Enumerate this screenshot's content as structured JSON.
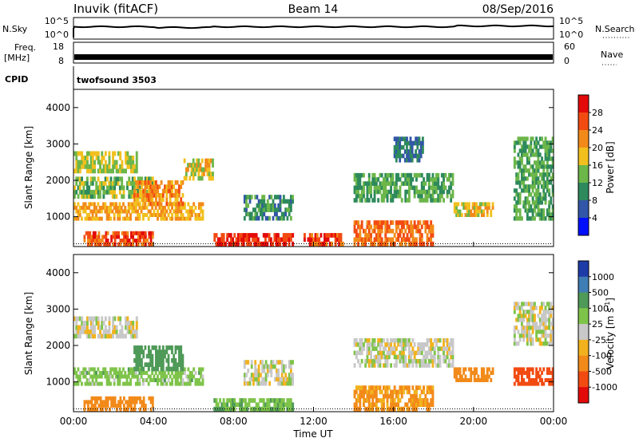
{
  "header": {
    "station": "Inuvik (fitACF)",
    "beam": "Beam 14",
    "date": "08/Sep/2016"
  },
  "top_panels": {
    "nsky_label": "N.Sky",
    "nsky_ticks": [
      "10^5",
      "10^0"
    ],
    "nsearch_label": "N.Search",
    "nsearch_ticks": [
      "10^5",
      "10^0"
    ],
    "freq_label": "Freq.",
    "freq_unit": "[MHz]",
    "freq_ticks": [
      "18",
      "8"
    ],
    "nave_label": "Nave",
    "nave_ticks": [
      "60",
      "0"
    ],
    "cpid_label": "CPID",
    "cpid_value": "twofsound 3503"
  },
  "axes": {
    "xlabel": "Time UT",
    "x_ticks": [
      "00:00",
      "04:00",
      "08:00",
      "12:00",
      "16:00",
      "20:00",
      "00:00"
    ],
    "ylabel": "Slant Range [km]",
    "y_ticks": [
      "1000",
      "2000",
      "3000",
      "4000"
    ],
    "ylim": [
      180,
      4500
    ]
  },
  "colorbars": {
    "power": {
      "label": "Power [dB]",
      "ticks": [
        "28",
        "24",
        "20",
        "16",
        "12",
        "8",
        "4"
      ],
      "colors": [
        "#0010ff",
        "#3256a8",
        "#2e8a5c",
        "#6cb64a",
        "#f2c01e",
        "#f28a1a",
        "#f24b12",
        "#e30a0a"
      ]
    },
    "velocity": {
      "label": "Velocity [m s",
      "label_sup": "-1",
      "label_end": "]",
      "ticks": [
        "1000",
        "500",
        "100",
        "25",
        "-25",
        "-100",
        "-500",
        "-1000"
      ],
      "colors": [
        "#1e3ca8",
        "#3f7db5",
        "#4f9a58",
        "#7fc44a",
        "#c8c8c8",
        "#f2b21e",
        "#f28a1a",
        "#f24b12",
        "#e30a0a"
      ]
    }
  },
  "chart_data": [
    {
      "type": "heatmap",
      "title": "Power",
      "xlabel": "Time UT",
      "ylabel": "Slant Range [km]",
      "xlim": [
        "00:00",
        "24:00"
      ],
      "ylim": [
        180,
        4500
      ],
      "colorbar": "Power [dB]",
      "regions": [
        {
          "t0": 0.0,
          "t1": 3.2,
          "r0": 2200,
          "r1": 2800,
          "v": 16
        },
        {
          "t0": 0.0,
          "t1": 6.5,
          "r0": 900,
          "r1": 1400,
          "v": 20
        },
        {
          "t0": 0.0,
          "t1": 4.0,
          "r0": 1500,
          "r1": 2100,
          "v": 14
        },
        {
          "t0": 0.5,
          "t1": 4.0,
          "r0": 200,
          "r1": 600,
          "v": 26
        },
        {
          "t0": 3.0,
          "t1": 5.5,
          "r0": 1300,
          "r1": 2000,
          "v": 22
        },
        {
          "t0": 5.5,
          "t1": 7.0,
          "r0": 2000,
          "r1": 2600,
          "v": 18
        },
        {
          "t0": 7.0,
          "t1": 11.0,
          "r0": 200,
          "r1": 550,
          "v": 28
        },
        {
          "t0": 8.5,
          "t1": 11.0,
          "r0": 900,
          "r1": 1600,
          "v": 10
        },
        {
          "t0": 11.5,
          "t1": 13.5,
          "r0": 200,
          "r1": 550,
          "v": 26
        },
        {
          "t0": 14.0,
          "t1": 18.0,
          "r0": 200,
          "r1": 900,
          "v": 24
        },
        {
          "t0": 14.0,
          "t1": 19.0,
          "r0": 1400,
          "r1": 2200,
          "v": 12
        },
        {
          "t0": 16.0,
          "t1": 17.5,
          "r0": 2500,
          "r1": 3200,
          "v": 8
        },
        {
          "t0": 19.0,
          "t1": 21.0,
          "r0": 1000,
          "r1": 1400,
          "v": 18
        },
        {
          "t0": 22.0,
          "t1": 24.0,
          "r0": 900,
          "r1": 3200,
          "v": 12
        }
      ]
    },
    {
      "type": "heatmap",
      "title": "Velocity",
      "xlabel": "Time UT",
      "ylabel": "Slant Range [km]",
      "xlim": [
        "00:00",
        "24:00"
      ],
      "ylim": [
        180,
        4500
      ],
      "colorbar": "Velocity [m s-1]",
      "regions": [
        {
          "t0": 0.0,
          "t1": 3.2,
          "r0": 2200,
          "r1": 2800,
          "v": 0
        },
        {
          "t0": 0.0,
          "t1": 6.5,
          "r0": 900,
          "r1": 1400,
          "v": 60
        },
        {
          "t0": 0.5,
          "t1": 4.0,
          "r0": 200,
          "r1": 600,
          "v": -150
        },
        {
          "t0": 3.0,
          "t1": 5.5,
          "r0": 1300,
          "r1": 2000,
          "v": 300
        },
        {
          "t0": 7.0,
          "t1": 11.0,
          "r0": 200,
          "r1": 550,
          "v": 80
        },
        {
          "t0": 8.5,
          "t1": 11.0,
          "r0": 900,
          "r1": 1600,
          "v": 0
        },
        {
          "t0": 14.0,
          "t1": 18.0,
          "r0": 200,
          "r1": 900,
          "v": -120
        },
        {
          "t0": 14.0,
          "t1": 19.0,
          "r0": 1400,
          "r1": 2200,
          "v": 0
        },
        {
          "t0": 19.0,
          "t1": 21.0,
          "r0": 1000,
          "r1": 1400,
          "v": -400
        },
        {
          "t0": 22.0,
          "t1": 24.0,
          "r0": 900,
          "r1": 1400,
          "v": -600
        },
        {
          "t0": 22.0,
          "t1": 24.0,
          "r0": 2000,
          "r1": 3200,
          "v": 0
        }
      ]
    }
  ]
}
